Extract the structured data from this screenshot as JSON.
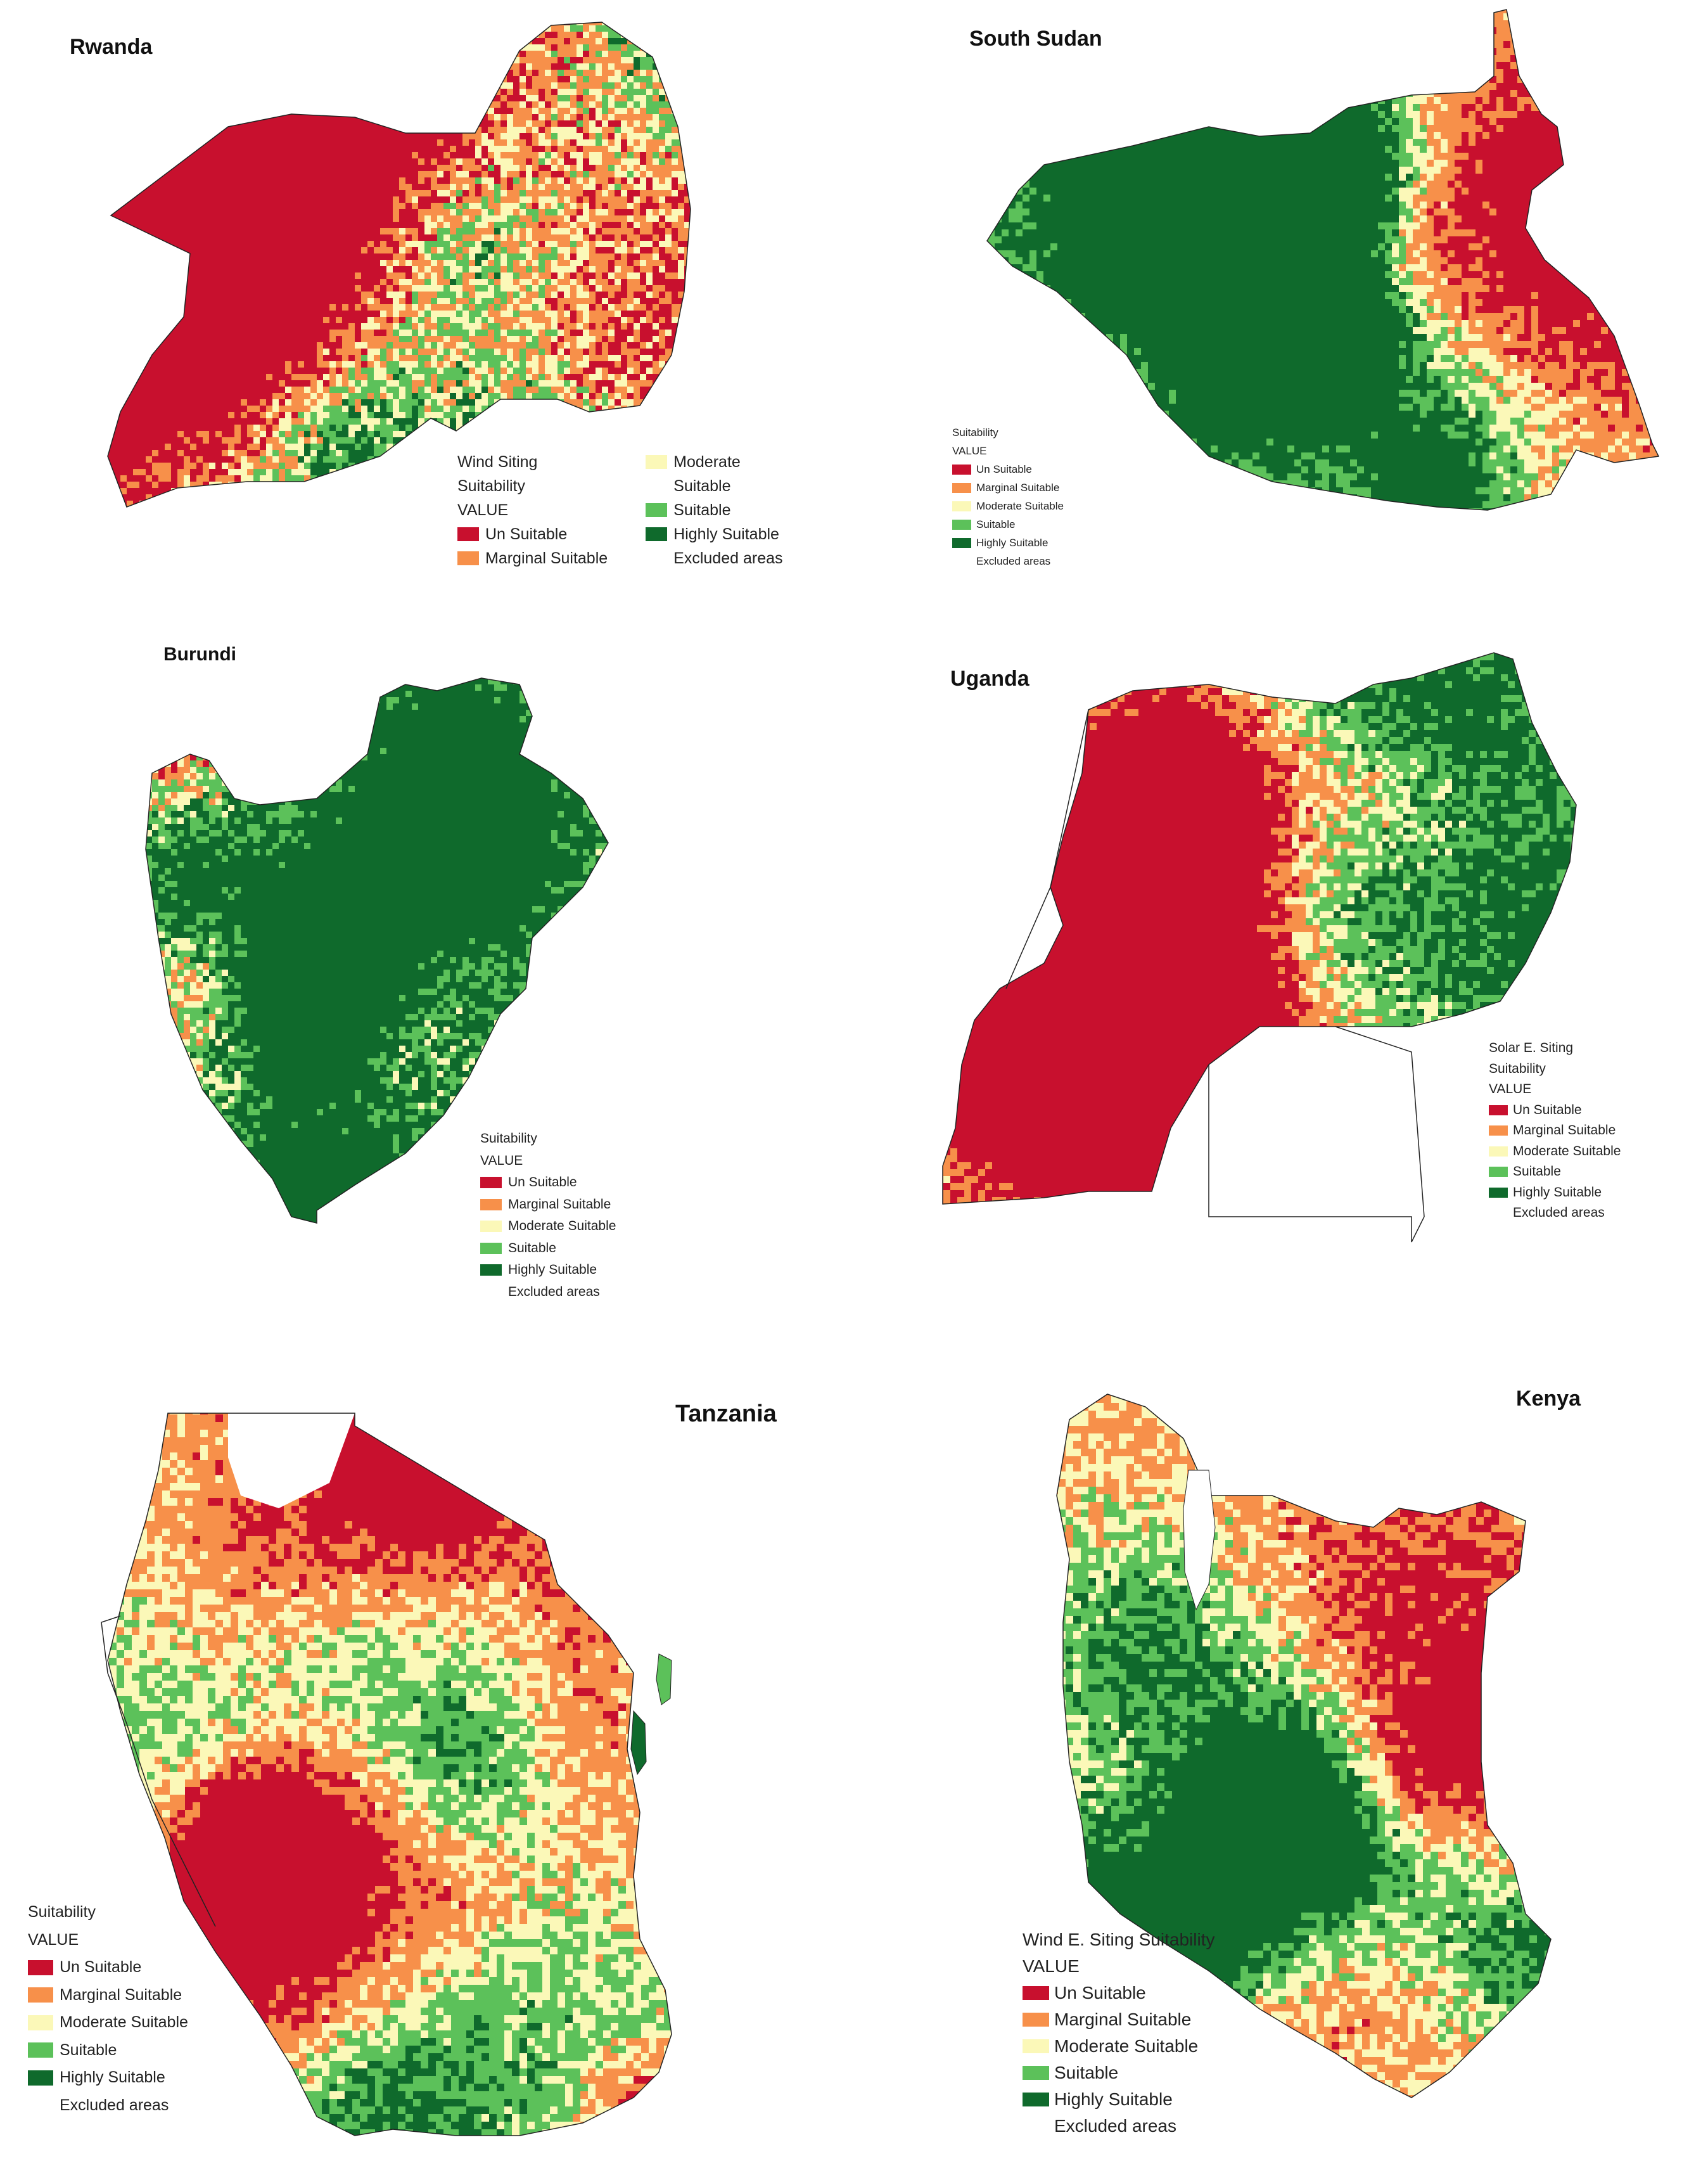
{
  "colors": {
    "un_suitable": "#c8102e",
    "marginal_suitable": "#f7904a",
    "moderate_suitable": "#fbf8b8",
    "suitable": "#5cc15a",
    "highly_suitable": "#0f6a2c",
    "excluded_areas": "#ffffff",
    "boundary": "#222222"
  },
  "panels": {
    "rwanda": {
      "title": "Rwanda",
      "legend": {
        "heading": "Wind Siting",
        "heading2": "Suitability",
        "value_label": "VALUE",
        "items": [
          "Un Suitable",
          "Marginal Suitable",
          "Moderate",
          "Suitable",
          "Highly Suitable",
          "Excluded areas"
        ],
        "moderate_suffix": "Suitable"
      }
    },
    "south_sudan": {
      "title": "South Sudan",
      "legend": {
        "heading": "Suitability",
        "value_label": "VALUE",
        "items": [
          "Un Suitable",
          "Marginal Suitable",
          "Moderate Suitable",
          "Suitable",
          "Highly Suitable",
          "Excluded areas"
        ]
      }
    },
    "burundi": {
      "title": "Burundi",
      "legend": {
        "heading": "Suitability",
        "value_label": "VALUE",
        "items": [
          "Un Suitable",
          "Marginal Suitable",
          "Moderate Suitable",
          "Suitable",
          "Highly Suitable",
          "Excluded areas"
        ]
      }
    },
    "uganda": {
      "title": "Uganda",
      "legend": {
        "heading": "Solar E. Siting",
        "heading2": "Suitability",
        "value_label": "VALUE",
        "items": [
          "Un Suitable",
          "Marginal Suitable",
          "Moderate Suitable",
          "Suitable",
          "Highly Suitable",
          "Excluded areas"
        ]
      }
    },
    "tanzania": {
      "title": "Tanzania",
      "legend": {
        "heading": "Suitability",
        "value_label": "VALUE",
        "items": [
          "Un Suitable",
          "Marginal Suitable",
          "Moderate Suitable",
          "Suitable",
          "Highly Suitable",
          "Excluded areas"
        ]
      }
    },
    "kenya": {
      "title": "Kenya",
      "legend": {
        "heading": "Wind E. Siting Suitability",
        "value_label": "VALUE",
        "items": [
          "Un Suitable",
          "Marginal Suitable",
          "Moderate Suitable",
          "Suitable",
          "Highly Suitable",
          "Excluded areas"
        ]
      }
    }
  }
}
